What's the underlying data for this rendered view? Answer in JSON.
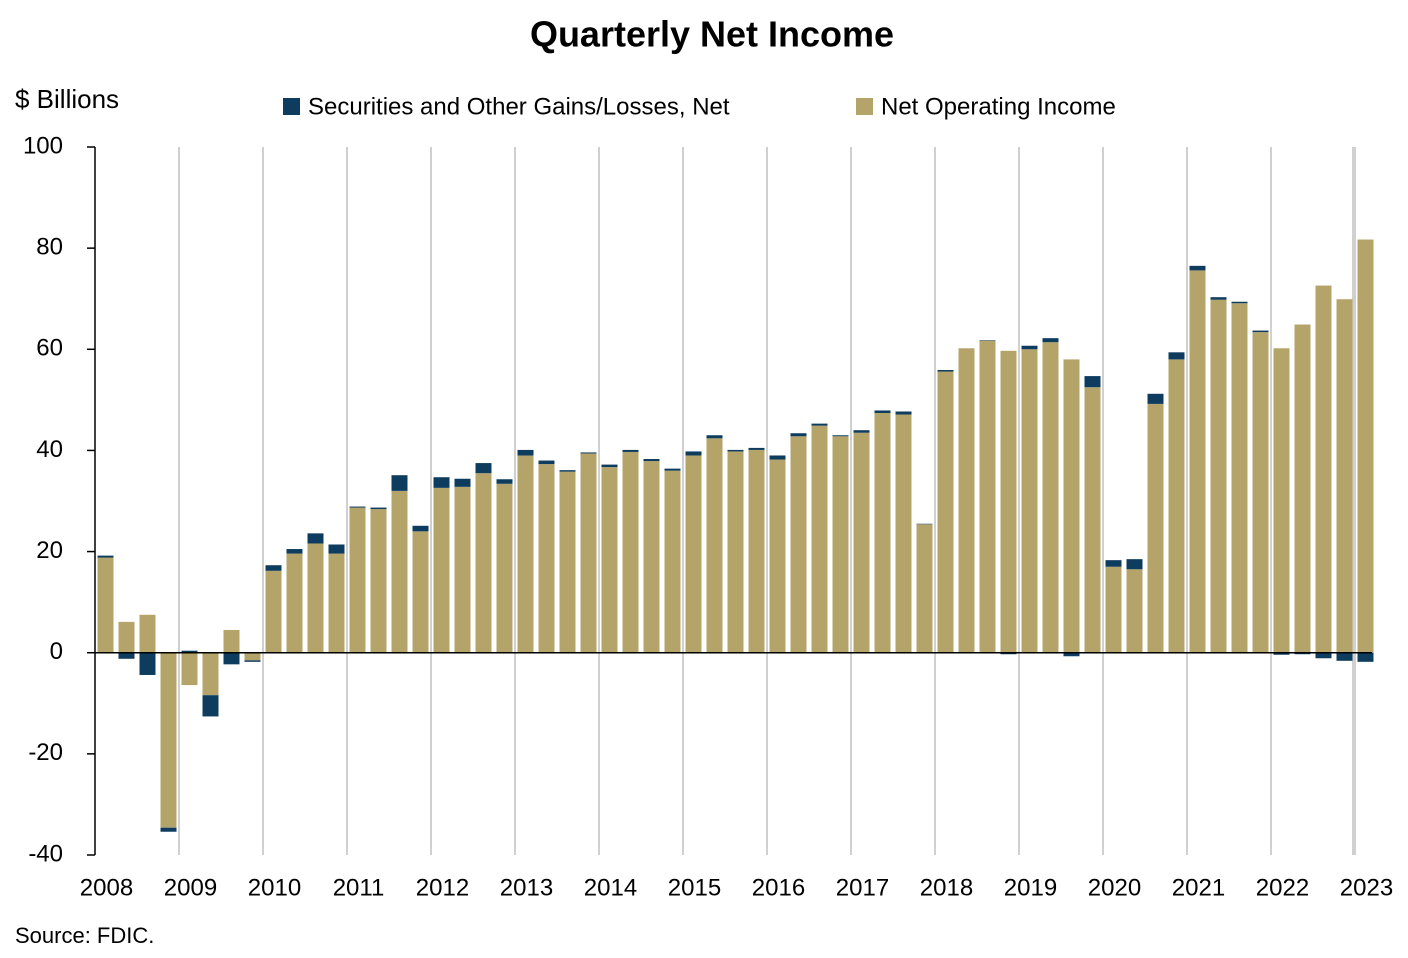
{
  "chart_data": {
    "type": "stacked_bar",
    "title": "Quarterly Net Income",
    "y_label": "$ Billions",
    "source": "Source: FDIC.",
    "categories": [
      "2008",
      null,
      null,
      null,
      "2009",
      null,
      null,
      null,
      "2010",
      null,
      null,
      null,
      "2011",
      null,
      null,
      null,
      "2012",
      null,
      null,
      null,
      "2013",
      null,
      null,
      null,
      "2014",
      null,
      null,
      null,
      "2015",
      null,
      null,
      null,
      "2016",
      null,
      null,
      null,
      "2017",
      null,
      null,
      null,
      "2018",
      null,
      null,
      null,
      "2019",
      null,
      null,
      null,
      "2020",
      null,
      null,
      null,
      "2021",
      null,
      null,
      null,
      "2022",
      null,
      null,
      null,
      "2023"
    ],
    "series": [
      {
        "name": "Securities and Other Gains/Losses, Net",
        "color": "#0d3c5e",
        "values": [
          0.4,
          -1.2,
          -4.4,
          -0.8,
          0.4,
          -4.2,
          -2.3,
          -0.3,
          1.1,
          0.9,
          2.0,
          1.8,
          0.2,
          0.3,
          3.1,
          1.1,
          2.1,
          1.6,
          2.0,
          0.9,
          1.1,
          0.7,
          0.3,
          0.2,
          0.5,
          0.4,
          0.4,
          0.4,
          0.8,
          0.6,
          0.3,
          0.4,
          0.8,
          0.6,
          0.4,
          0.2,
          0.5,
          0.5,
          0.6,
          0.1,
          0.3,
          0,
          0.1,
          -0.3,
          0.7,
          0.8,
          -0.7,
          2.2,
          1.3,
          2.0,
          2.0,
          1.4,
          0.9,
          0.5,
          0.3,
          0.3,
          -0.4,
          -0.3,
          -1.1,
          -1.6,
          -1.8
        ]
      },
      {
        "name": "Net Operating Income",
        "color": "#b5a46a",
        "values": [
          18.8,
          6.1,
          7.5,
          -34.6,
          -6.4,
          -8.4,
          4.5,
          -1.5,
          16.2,
          19.6,
          21.6,
          19.6,
          28.7,
          28.4,
          32.0,
          24.0,
          32.6,
          32.8,
          35.5,
          33.4,
          39.0,
          37.3,
          35.8,
          39.4,
          36.7,
          39.7,
          37.9,
          36.0,
          39.0,
          42.4,
          39.8,
          40.1,
          38.2,
          42.8,
          44.9,
          42.8,
          43.5,
          47.4,
          47.1,
          25.4,
          55.6,
          60.2,
          61.7,
          59.7,
          60.0,
          61.4,
          58.0,
          52.5,
          17.0,
          16.5,
          49.2,
          58.0,
          75.6,
          69.8,
          69.1,
          63.4,
          60.2,
          64.9,
          72.6,
          69.9,
          81.7
        ]
      }
    ],
    "ylim": [
      -40,
      100
    ],
    "yticks": [
      -40,
      -20,
      0,
      20,
      40,
      60,
      80,
      100
    ],
    "grid": "x",
    "legend": "top"
  }
}
